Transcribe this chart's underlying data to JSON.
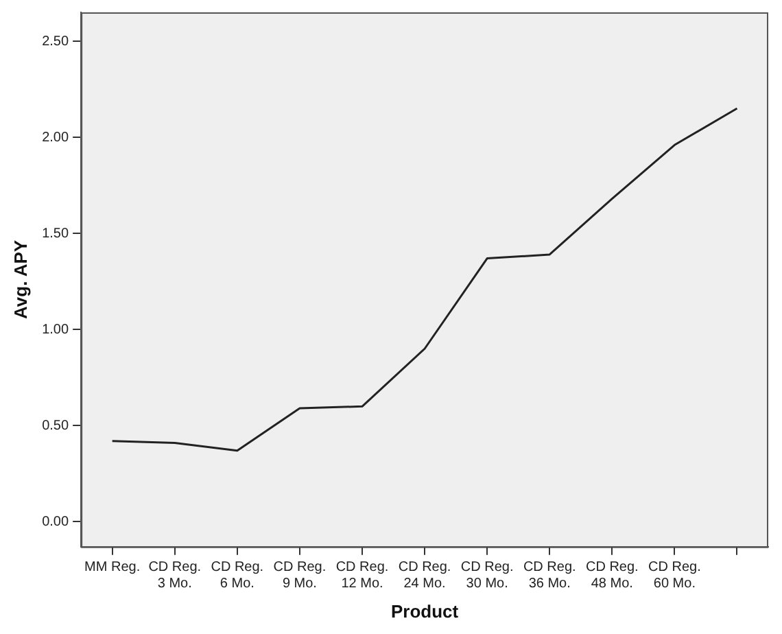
{
  "chart_data": {
    "type": "line",
    "xlabel": "Product",
    "ylabel": "Avg. APY",
    "categories": [
      "MM Reg.",
      "CD Reg.\n3 Mo.",
      "CD Reg.\n6 Mo.",
      "CD Reg.\n9 Mo.",
      "CD Reg.\n12 Mo.",
      "CD Reg.\n24 Mo.",
      "CD Reg.\n30 Mo.",
      "CD Reg.\n36 Mo.",
      "CD Reg.\n48 Mo.",
      "CD Reg.\n60 Mo.",
      null
    ],
    "series": [
      {
        "color": "#222222",
        "values": [
          0.42,
          0.41,
          0.37,
          0.59,
          0.6,
          0.9,
          1.37,
          1.39,
          1.68,
          1.96,
          2.15
        ]
      }
    ],
    "ylim": [
      -0.13,
      2.65
    ],
    "yticks": [
      {
        "value": 0,
        "label": "0.00"
      },
      {
        "value": 0.5,
        "label": "0.50"
      },
      {
        "value": 1,
        "label": "1.00"
      },
      {
        "value": 1.5,
        "label": "1.50"
      },
      {
        "value": 2,
        "label": "2.00"
      },
      {
        "value": 2.5,
        "label": "2.50"
      }
    ],
    "grid": false,
    "legend": false,
    "marker": "none",
    "line_style": "solid"
  }
}
